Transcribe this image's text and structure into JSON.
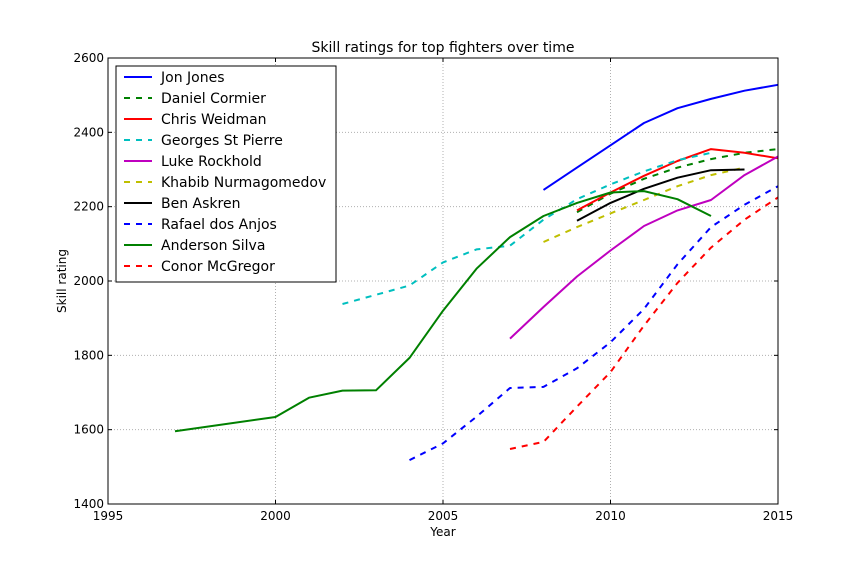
{
  "chart_data": {
    "type": "line",
    "title": "Skill ratings for top fighters over time",
    "xlabel": "Year",
    "ylabel": "Skill rating",
    "xlim": [
      1995,
      2015
    ],
    "ylim": [
      1400,
      2600
    ],
    "xticks": [
      1995,
      2000,
      2005,
      2010,
      2015
    ],
    "yticks": [
      1400,
      1600,
      1800,
      2000,
      2200,
      2400,
      2600
    ],
    "grid": true,
    "legend_position": "top-left",
    "series": [
      {
        "name": "Jon Jones",
        "color": "#0000ff",
        "dashed": false,
        "x": [
          2008,
          2009,
          2010,
          2011,
          2012,
          2013,
          2014,
          2015
        ],
        "y": [
          2245,
          2305,
          2365,
          2425,
          2465,
          2490,
          2512,
          2528
        ]
      },
      {
        "name": "Daniel Cormier",
        "color": "#008000",
        "dashed": true,
        "x": [
          2009,
          2010,
          2011,
          2012,
          2013,
          2014,
          2015
        ],
        "y": [
          2185,
          2235,
          2275,
          2305,
          2328,
          2345,
          2355
        ]
      },
      {
        "name": "Chris Weidman",
        "color": "#ff0000",
        "dashed": false,
        "x": [
          2009,
          2010,
          2011,
          2012,
          2013,
          2014,
          2015
        ],
        "y": [
          2190,
          2238,
          2283,
          2323,
          2355,
          2345,
          2330
        ]
      },
      {
        "name": "Georges St Pierre",
        "color": "#00bfbf",
        "dashed": true,
        "x": [
          2002,
          2003,
          2004,
          2005,
          2006,
          2007,
          2008,
          2009,
          2010,
          2011,
          2012,
          2013
        ],
        "y": [
          1938,
          1963,
          1988,
          2050,
          2085,
          2095,
          2165,
          2220,
          2260,
          2295,
          2325,
          2345
        ]
      },
      {
        "name": "Luke Rockhold",
        "color": "#bf00bf",
        "dashed": false,
        "x": [
          2007,
          2008,
          2009,
          2010,
          2011,
          2012,
          2013,
          2014,
          2015
        ],
        "y": [
          1845,
          1930,
          2012,
          2082,
          2148,
          2190,
          2218,
          2285,
          2335
        ]
      },
      {
        "name": "Khabib Nurmagomedov",
        "color": "#bfbf00",
        "dashed": true,
        "x": [
          2008,
          2009,
          2010,
          2011,
          2012,
          2013,
          2014
        ],
        "y": [
          2105,
          2145,
          2182,
          2218,
          2255,
          2285,
          2305
        ]
      },
      {
        "name": "Ben Askren",
        "color": "#000000",
        "dashed": false,
        "x": [
          2009,
          2010,
          2011,
          2012,
          2013,
          2014
        ],
        "y": [
          2162,
          2210,
          2248,
          2278,
          2298,
          2300
        ]
      },
      {
        "name": "Rafael dos Anjos",
        "color": "#0000ff",
        "dashed": true,
        "x": [
          2004,
          2005,
          2006,
          2007,
          2008,
          2009,
          2010,
          2011,
          2012,
          2013,
          2014,
          2015
        ],
        "y": [
          1518,
          1563,
          1635,
          1712,
          1715,
          1765,
          1835,
          1925,
          2045,
          2145,
          2205,
          2255
        ]
      },
      {
        "name": "Anderson Silva",
        "color": "#008000",
        "dashed": false,
        "x": [
          1997,
          2000,
          2001,
          2002,
          2003,
          2004,
          2005,
          2006,
          2007,
          2008,
          2009,
          2010,
          2011,
          2012,
          2013
        ],
        "y": [
          1596,
          1634,
          1686,
          1705,
          1706,
          1793,
          1920,
          2033,
          2118,
          2175,
          2210,
          2238,
          2242,
          2220,
          2175
        ]
      },
      {
        "name": "Conor McGregor",
        "color": "#ff0000",
        "dashed": true,
        "x": [
          2007,
          2008,
          2009,
          2010,
          2011,
          2012,
          2013,
          2014,
          2015
        ],
        "y": [
          1548,
          1567,
          1662,
          1755,
          1880,
          1995,
          2090,
          2165,
          2225
        ]
      }
    ]
  }
}
